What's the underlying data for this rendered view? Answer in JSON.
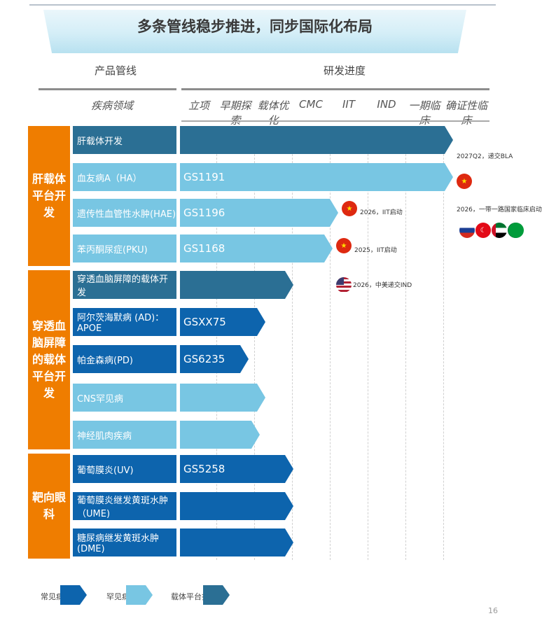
{
  "title": "多条管线稳步推进，同步国际化布局",
  "headers": {
    "products": "产品管线",
    "progress": "研发进度",
    "disease_area": "疾病领域"
  },
  "stages": [
    "立项",
    "早期探索",
    "载体优化",
    "CMC",
    "IIT",
    "IND",
    "一期临床",
    "确证性临床"
  ],
  "categories": [
    {
      "label": "肝载体平台开发"
    },
    {
      "label": "穿透血脑屏障的载体平台开发"
    },
    {
      "label": "靶向眼科"
    }
  ],
  "rows": [
    {
      "disease": "肝载体开发",
      "code": "",
      "type": "platform"
    },
    {
      "disease": "血友病A（HA）",
      "code": "GS1191",
      "type": "rare"
    },
    {
      "disease": "遗传性血管性水肿(HAE)",
      "code": "GS1196",
      "type": "rare"
    },
    {
      "disease": "苯丙酮尿症(PKU)",
      "code": "GS1168",
      "type": "rare"
    },
    {
      "disease": "穿透血脑屏障的载体开发",
      "code": "",
      "type": "platform"
    },
    {
      "disease": "阿尔茨海默病 (AD)：APOE",
      "code": "GSXX75",
      "type": "common"
    },
    {
      "disease": "帕金森病(PD)",
      "code": "GS6235",
      "type": "common"
    },
    {
      "disease": "CNS罕见病",
      "code": "",
      "type": "rare"
    },
    {
      "disease": "神经肌肉疾病",
      "code": "",
      "type": "rare"
    },
    {
      "disease": "葡萄膜炎(UV)",
      "code": "GS5258",
      "type": "common"
    },
    {
      "disease": "葡萄膜炎继发黄斑水肿（UME)",
      "code": "",
      "type": "common"
    },
    {
      "disease": "糖尿病继发黄斑水肿 (DME)",
      "code": "",
      "type": "common"
    }
  ],
  "notes": {
    "bla": "2027Q2，递交BLA",
    "belt_road": "2026，一带一路国家临床启动",
    "hae_iit": "2026，IIT启动",
    "pku_iit": "2025，IIT启动",
    "ind": "2026，中美递交IND"
  },
  "legend": {
    "common": "常见病",
    "rare": "罕见病",
    "platform": "载体平台技术"
  },
  "colors": {
    "common": "#0d64ad",
    "rare": "#78c6e3",
    "platform": "#2b6f94",
    "category": "#ef7d00"
  },
  "page_number": "16"
}
